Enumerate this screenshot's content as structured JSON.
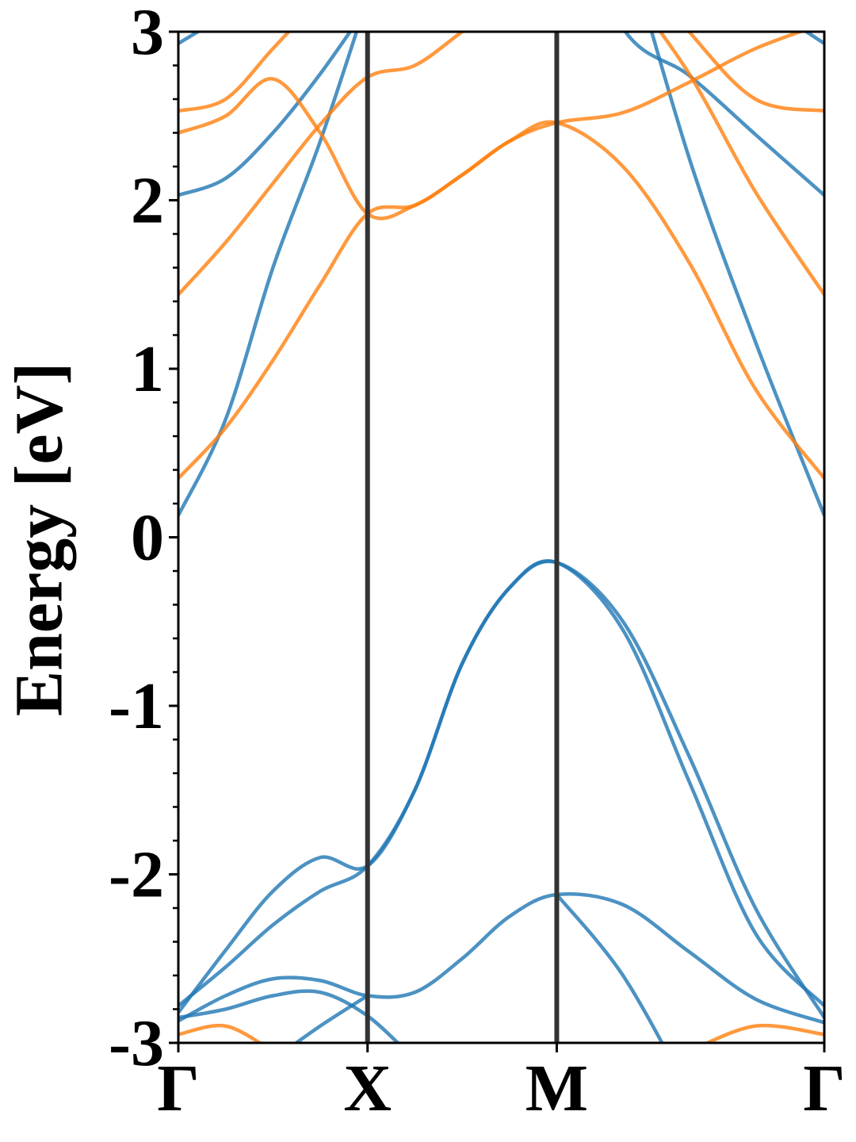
{
  "chart_data": {
    "type": "line",
    "ylabel": "Energy [eV]",
    "x": [
      0,
      0.25,
      0.5,
      0.75,
      1,
      1.25,
      1.5,
      1.75,
      2,
      2.35,
      2.7,
      3.05,
      3.414
    ],
    "xlim": [
      0,
      3.414
    ],
    "xticks": [
      {
        "value": 0,
        "label": "Γ"
      },
      {
        "value": 1,
        "label": "X"
      },
      {
        "value": 2,
        "label": "M"
      },
      {
        "value": 3.414,
        "label": "Γ"
      }
    ],
    "ylim": [
      -3,
      3
    ],
    "yticks": [
      -3,
      -2,
      -1,
      0,
      1,
      2,
      3
    ],
    "series": [
      {
        "color": "#1f77b4",
        "values": [
          -2.78,
          -2.55,
          -2.3,
          -2.1,
          -1.95,
          -1.5,
          -0.75,
          -0.3,
          -0.15,
          -0.5,
          -1.3,
          -2.2,
          -2.85
        ]
      },
      {
        "color": "#1f77b4",
        "values": [
          -2.82,
          -2.45,
          -2.1,
          -1.9,
          -1.95,
          -1.5,
          -0.75,
          -0.3,
          -0.15,
          -0.55,
          -1.45,
          -2.35,
          -2.78
        ]
      },
      {
        "color": "#1f77b4",
        "values": [
          -2.87,
          -2.72,
          -2.62,
          -2.63,
          -2.72,
          -2.7,
          -2.5,
          -2.25,
          -2.12,
          -2.18,
          -2.46,
          -2.74,
          -2.88
        ]
      },
      {
        "color": "#1f77b4",
        "values": [
          -2.85,
          -2.8,
          -2.72,
          -2.7,
          -2.84,
          -3.1,
          null,
          null,
          -2.12,
          -2.6,
          -3.3,
          null,
          null
        ]
      },
      {
        "color": "#1f77b4",
        "values": [
          null,
          null,
          -3.1,
          -2.9,
          -2.72,
          null,
          null,
          null,
          null,
          null,
          null,
          null,
          null
        ]
      },
      {
        "color": "#1f77b4",
        "values": [
          0.13,
          0.7,
          1.6,
          2.35,
          3.2,
          null,
          null,
          null,
          null,
          3.6,
          2.25,
          1.16,
          0.13
        ]
      },
      {
        "color": "#1f77b4",
        "values": [
          2.03,
          2.13,
          2.4,
          2.75,
          3.15,
          null,
          null,
          null,
          3.9,
          3.02,
          2.74,
          2.39,
          2.03
        ]
      },
      {
        "color": "#1f77b4",
        "values": [
          2.93,
          3.1,
          null,
          null,
          null,
          null,
          null,
          null,
          null,
          null,
          null,
          3.2,
          2.93
        ]
      },
      {
        "color": "#ff7f0e",
        "values": [
          0.35,
          0.65,
          1.05,
          1.5,
          1.92,
          1.97,
          2.15,
          2.35,
          2.46,
          2.2,
          1.63,
          0.88,
          0.35
        ]
      },
      {
        "color": "#ff7f0e",
        "values": [
          1.44,
          1.75,
          2.1,
          2.45,
          2.73,
          2.8,
          3.0,
          3.2,
          null,
          3.3,
          2.75,
          2.05,
          1.44
        ]
      },
      {
        "color": "#ff7f0e",
        "values": [
          2.4,
          2.5,
          2.72,
          2.4,
          1.92,
          1.97,
          2.15,
          2.35,
          2.46,
          2.52,
          2.7,
          2.9,
          3.05
        ]
      },
      {
        "color": "#ff7f0e",
        "values": [
          2.53,
          2.6,
          2.9,
          3.2,
          null,
          null,
          null,
          null,
          null,
          3.5,
          3.0,
          2.6,
          2.53
        ]
      },
      {
        "color": "#ff7f0e",
        "values": [
          -2.95,
          -2.9,
          -3.05,
          null,
          null,
          null,
          null,
          null,
          null,
          null,
          -3.05,
          -2.9,
          -2.95
        ]
      }
    ]
  }
}
